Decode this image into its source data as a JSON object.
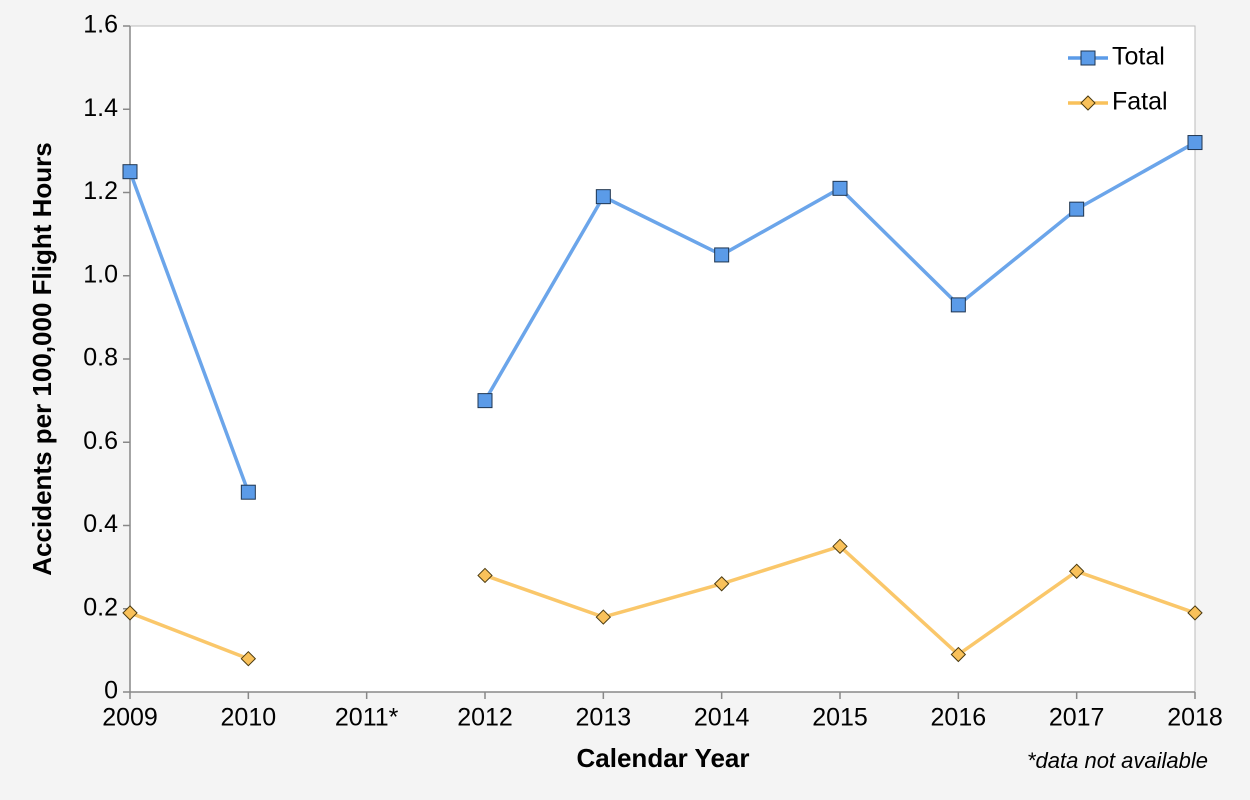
{
  "chart_data": {
    "type": "line",
    "x_label": "Calendar Year",
    "y_label": "Accidents per 100,000 Flight Hours",
    "annotation": "*data not available",
    "categories": [
      "2009",
      "2010",
      "2011*",
      "2012",
      "2013",
      "2014",
      "2015",
      "2016",
      "2017",
      "2018"
    ],
    "series": [
      {
        "name": "Total",
        "color": "#5b9be8",
        "marker": "square",
        "values": [
          1.25,
          0.48,
          null,
          0.7,
          1.19,
          1.05,
          1.21,
          0.93,
          1.16,
          1.32
        ]
      },
      {
        "name": "Fatal",
        "color": "#f9c15a",
        "marker": "diamond",
        "values": [
          0.19,
          0.08,
          null,
          0.28,
          0.18,
          0.26,
          0.35,
          0.09,
          0.29,
          0.19
        ]
      }
    ],
    "ylim": [
      0,
      1.6
    ],
    "yticks": [
      0,
      0.2,
      0.4,
      0.6,
      0.8,
      {
        "value": 1,
        "label": "1.0"
      },
      1.2,
      1.4,
      1.6
    ],
    "grid": false,
    "legend": "top-right"
  }
}
